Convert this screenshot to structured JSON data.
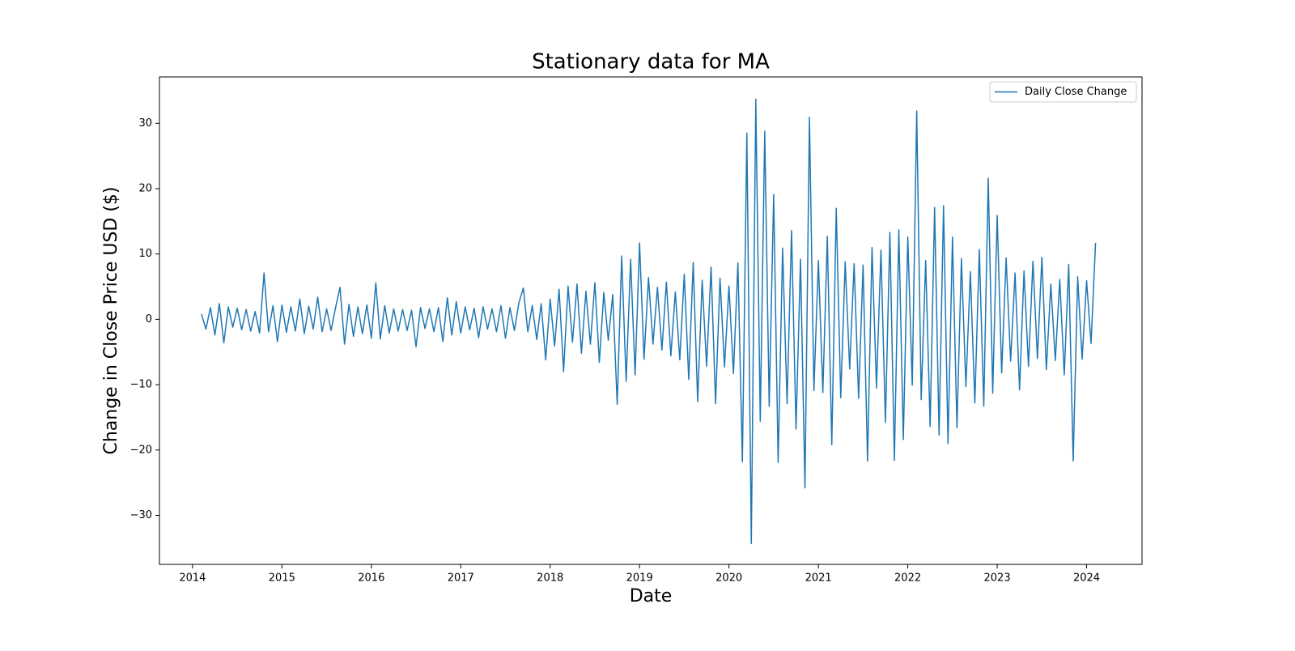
{
  "chart_data": {
    "type": "line",
    "title": "Stationary data for MA",
    "xlabel": "Date",
    "ylabel": "Change in Close Price USD ($)",
    "x": [
      2014.1,
      2014.15,
      2014.2,
      2014.25,
      2014.3,
      2014.35,
      2014.4,
      2014.45,
      2014.5,
      2014.55,
      2014.6,
      2014.65,
      2014.7,
      2014.75,
      2014.8,
      2014.85,
      2014.9,
      2014.95,
      2015.0,
      2015.05,
      2015.1,
      2015.15,
      2015.2,
      2015.25,
      2015.3,
      2015.35,
      2015.4,
      2015.45,
      2015.5,
      2015.55,
      2015.6,
      2015.65,
      2015.7,
      2015.75,
      2015.8,
      2015.85,
      2015.9,
      2015.95,
      2016.0,
      2016.05,
      2016.1,
      2016.15,
      2016.2,
      2016.25,
      2016.3,
      2016.35,
      2016.4,
      2016.45,
      2016.5,
      2016.55,
      2016.6,
      2016.65,
      2016.7,
      2016.75,
      2016.8,
      2016.85,
      2016.9,
      2016.95,
      2017.0,
      2017.05,
      2017.1,
      2017.15,
      2017.2,
      2017.25,
      2017.3,
      2017.35,
      2017.4,
      2017.45,
      2017.5,
      2017.55,
      2017.6,
      2017.65,
      2017.7,
      2017.75,
      2017.8,
      2017.85,
      2017.9,
      2017.95,
      2018.0,
      2018.05,
      2018.1,
      2018.15,
      2018.2,
      2018.25,
      2018.3,
      2018.35,
      2018.4,
      2018.45,
      2018.5,
      2018.55,
      2018.6,
      2018.65,
      2018.7,
      2018.75,
      2018.8,
      2018.85,
      2018.9,
      2018.95,
      2019.0,
      2019.05,
      2019.1,
      2019.15,
      2019.2,
      2019.25,
      2019.3,
      2019.35,
      2019.4,
      2019.45,
      2019.5,
      2019.55,
      2019.6,
      2019.65,
      2019.7,
      2019.75,
      2019.8,
      2019.85,
      2019.9,
      2019.95,
      2020.0,
      2020.05,
      2020.1,
      2020.15,
      2020.2,
      2020.25,
      2020.3,
      2020.35,
      2020.4,
      2020.45,
      2020.5,
      2020.55,
      2020.6,
      2020.65,
      2020.7,
      2020.75,
      2020.8,
      2020.85,
      2020.9,
      2020.95,
      2021.0,
      2021.05,
      2021.1,
      2021.15,
      2021.2,
      2021.25,
      2021.3,
      2021.35,
      2021.4,
      2021.45,
      2021.5,
      2021.55,
      2021.6,
      2021.65,
      2021.7,
      2021.75,
      2021.8,
      2021.85,
      2021.9,
      2021.95,
      2022.0,
      2022.05,
      2022.1,
      2022.15,
      2022.2,
      2022.25,
      2022.3,
      2022.35,
      2022.4,
      2022.45,
      2022.5,
      2022.55,
      2022.6,
      2022.65,
      2022.7,
      2022.75,
      2022.8,
      2022.85,
      2022.9,
      2022.95,
      2023.0,
      2023.05,
      2023.1,
      2023.15,
      2023.2,
      2023.25,
      2023.3,
      2023.35,
      2023.4,
      2023.45,
      2023.5,
      2023.55,
      2023.6,
      2023.65,
      2023.7,
      2023.75,
      2023.8,
      2023.85,
      2023.9,
      2023.95,
      2024.0,
      2024.05,
      2024.1
    ],
    "series": [
      {
        "name": "Daily Close Change",
        "color": "#1f77b4",
        "values": [
          0.8,
          -1.5,
          1.8,
          -2.4,
          2.4,
          -3.6,
          1.9,
          -1.2,
          1.7,
          -1.6,
          1.5,
          -1.8,
          1.2,
          -2.1,
          7.1,
          -1.9,
          2.1,
          -3.4,
          2.2,
          -2.0,
          1.9,
          -1.8,
          3.1,
          -2.2,
          2.0,
          -1.5,
          3.4,
          -1.9,
          1.6,
          -1.7,
          1.8,
          4.9,
          -3.8,
          2.3,
          -2.6,
          1.9,
          -2.2,
          2.2,
          -2.9,
          5.6,
          -3.0,
          2.1,
          -2.1,
          1.6,
          -1.8,
          1.5,
          -1.7,
          1.4,
          -4.2,
          1.8,
          -1.4,
          1.6,
          -1.9,
          1.8,
          -3.4,
          3.3,
          -2.4,
          2.7,
          -2.1,
          1.9,
          -1.6,
          1.7,
          -2.8,
          1.9,
          -1.5,
          1.6,
          -1.9,
          2.1,
          -2.9,
          1.8,
          -1.7,
          2.5,
          4.8,
          -1.9,
          2.1,
          -3.1,
          2.4,
          -6.2,
          3.1,
          -4.1,
          4.6,
          -8.0,
          5.1,
          -3.5,
          5.4,
          -5.2,
          4.3,
          -3.8,
          5.6,
          -6.6,
          4.1,
          -3.2,
          3.8,
          -13.0,
          9.7,
          -9.5,
          9.2,
          -8.5,
          11.7,
          -6.1,
          6.4,
          -3.8,
          4.9,
          -4.7,
          5.7,
          -5.6,
          4.2,
          -6.2,
          6.9,
          -9.2,
          8.7,
          -12.6,
          6.0,
          -7.2,
          8.0,
          -12.9,
          6.3,
          -7.3,
          5.1,
          -8.3,
          8.6,
          -21.8,
          28.5,
          -34.3,
          33.7,
          -15.6,
          28.8,
          -13.3,
          19.1,
          -21.9,
          10.9,
          -12.9,
          13.6,
          -16.8,
          9.2,
          -25.8,
          30.9,
          -10.9,
          9.0,
          -11.2,
          12.7,
          -19.2,
          17.0,
          -12.0,
          8.8,
          -7.6,
          8.5,
          -12.1,
          8.3,
          -21.7,
          11.0,
          -10.5,
          10.6,
          -15.8,
          13.3,
          -21.6,
          13.7,
          -18.4,
          12.6,
          -10.1,
          31.9,
          -12.3,
          9.0,
          -16.4,
          17.1,
          -17.7,
          17.4,
          -19.0,
          12.6,
          -16.6,
          9.3,
          -10.3,
          7.3,
          -12.8,
          10.7,
          -13.3,
          21.6,
          -11.3,
          15.9,
          -8.2,
          9.4,
          -6.4,
          7.1,
          -10.8,
          7.4,
          -7.2,
          8.9,
          -6.0,
          9.5,
          -7.7,
          5.4,
          -6.3,
          6.1,
          -8.5,
          8.4,
          -21.7,
          6.5,
          -6.1,
          5.9,
          -3.7,
          11.7
        ]
      }
    ],
    "xlim": [
      2013.63,
      2024.62
    ],
    "xticks": [
      2014,
      2015,
      2016,
      2017,
      2018,
      2019,
      2020,
      2021,
      2022,
      2023,
      2024
    ],
    "ylim": [
      -37.5,
      37.1
    ],
    "yticks": [
      {
        "value": -30,
        "label": "−30"
      },
      {
        "value": -20,
        "label": "−20"
      },
      {
        "value": -10,
        "label": "−10"
      },
      0,
      10,
      20,
      30
    ],
    "legend": "upper right"
  }
}
